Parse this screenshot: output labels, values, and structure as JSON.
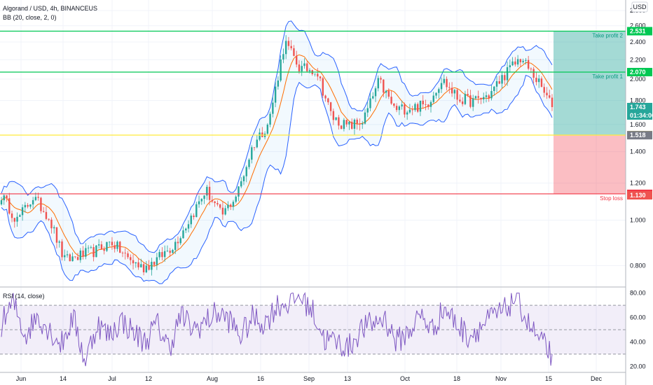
{
  "header": {
    "symbol_line": "Algorand / USD, 4h, BINANCEUS",
    "indicator_line": "BB (20, close, 2, 0)",
    "rsi_title": "RSI (14, close)",
    "currency": "USD"
  },
  "colors": {
    "up": "#26a69a",
    "down": "#ef5350",
    "bb": "#2962ff",
    "bb_mid": "#ff6d00",
    "bb_fill": "rgba(33,150,243,0.06)",
    "tp_line": "#00c853",
    "entry_line": "#ffeb3b",
    "sl_line": "#f23645",
    "tp_zone": "rgba(38,166,154,0.42)",
    "sl_zone": "rgba(242,54,69,0.32)",
    "rsi_line": "#7e57c2",
    "rsi_band": "rgba(126,87,194,0.10)"
  },
  "chart_data": [
    {
      "type": "candlestick",
      "symbol": "ALGOUSD",
      "interval": "4h",
      "y_scale": "log",
      "ylim": [
        0.72,
        2.95
      ],
      "y_ticks": [
        "2.800",
        "2.600",
        "2.400",
        "2.200",
        "2.000",
        "1.800",
        "1.600",
        "1.400",
        "1.200",
        "1.000",
        "0.800"
      ],
      "x_ticks": [
        "Jun",
        "14",
        "Jul",
        "12",
        "Aug",
        "16",
        "Sep",
        "13",
        "Oct",
        "18",
        "Nov",
        "15",
        "Dec"
      ],
      "price_path": [
        [
          "Jun",
          1.13
        ],
        [
          "7",
          1.0
        ],
        [
          "14",
          1.12
        ],
        [
          "21",
          1.02
        ],
        [
          "26",
          0.82
        ],
        [
          "Jul",
          0.84
        ],
        [
          "7",
          0.86
        ],
        [
          "12",
          0.9
        ],
        [
          "20",
          0.83
        ],
        [
          "26",
          0.79
        ],
        [
          "Aug",
          0.83
        ],
        [
          "6",
          0.89
        ],
        [
          "11",
          1.01
        ],
        [
          "16",
          1.16
        ],
        [
          "20",
          1.02
        ],
        [
          "27",
          1.14
        ],
        [
          "Sep",
          1.45
        ],
        [
          "7",
          1.62
        ],
        [
          "9",
          2.4
        ],
        [
          "11",
          2.1
        ],
        [
          "13",
          2.1
        ],
        [
          "18",
          1.66
        ],
        [
          "23",
          1.58
        ],
        [
          "27",
          1.63
        ],
        [
          "Oct",
          1.98
        ],
        [
          "6",
          1.72
        ],
        [
          "12",
          1.74
        ],
        [
          "18",
          1.76
        ],
        [
          "23",
          2.0
        ],
        [
          "28",
          1.82
        ],
        [
          "Nov",
          1.79
        ],
        [
          "6",
          1.85
        ],
        [
          "9",
          2.05
        ],
        [
          "11",
          2.22
        ],
        [
          "13",
          2.0
        ],
        [
          "15",
          1.743
        ]
      ],
      "position": {
        "take_profit_2": {
          "label": "Take profit 2",
          "price": 2.531,
          "price_text": "2.531"
        },
        "take_profit_1": {
          "label": "Take profit 1",
          "price": 2.07,
          "price_text": "2.070"
        },
        "entry": {
          "price": 1.519,
          "price_text": "1.519"
        },
        "stop_loss": {
          "label": "Stop loss",
          "price": 1.138,
          "price_text": "1.138"
        }
      },
      "badges": [
        {
          "price": 1.743,
          "text": "1.743",
          "sub": "01:34:06",
          "color": "#26a69a"
        },
        {
          "price": 1.518,
          "text": "1.518",
          "color": "#787b86"
        },
        {
          "price": 1.13,
          "text": "1.130",
          "color": "#ef5350"
        }
      ]
    },
    {
      "type": "line",
      "name": "RSI (14, close)",
      "ylim": [
        15,
        85
      ],
      "y_ticks": [
        "80.00",
        "60.00",
        "40.00",
        "20.00"
      ],
      "bands": {
        "upper": 70,
        "middle": 50,
        "lower": 30
      },
      "rsi_path": [
        [
          "Jun",
          55
        ],
        [
          "4",
          72
        ],
        [
          "7",
          45
        ],
        [
          "10",
          62
        ],
        [
          "14",
          50
        ],
        [
          "18",
          38
        ],
        [
          "22",
          60
        ],
        [
          "26",
          24
        ],
        [
          "Jul",
          55
        ],
        [
          "5",
          45
        ],
        [
          "9",
          58
        ],
        [
          "12",
          48
        ],
        [
          "16",
          40
        ],
        [
          "20",
          55
        ],
        [
          "24",
          35
        ],
        [
          "28",
          62
        ],
        [
          "Aug",
          50
        ],
        [
          "5",
          56
        ],
        [
          "9",
          64
        ],
        [
          "13",
          58
        ],
        [
          "17",
          45
        ],
        [
          "21",
          60
        ],
        [
          "25",
          55
        ],
        [
          "30",
          70
        ],
        [
          "Sep",
          72
        ],
        [
          "5",
          78
        ],
        [
          "9",
          65
        ],
        [
          "11",
          42
        ],
        [
          "14",
          40
        ],
        [
          "18",
          35
        ],
        [
          "22",
          50
        ],
        [
          "26",
          55
        ],
        [
          "Oct",
          60
        ],
        [
          "5",
          40
        ],
        [
          "9",
          48
        ],
        [
          "13",
          62
        ],
        [
          "17",
          50
        ],
        [
          "21",
          68
        ],
        [
          "25",
          55
        ],
        [
          "29",
          45
        ],
        [
          "Nov",
          52
        ],
        [
          "4",
          60
        ],
        [
          "8",
          65
        ],
        [
          "10",
          78
        ],
        [
          "12",
          55
        ],
        [
          "14",
          40
        ],
        [
          "15",
          30
        ]
      ]
    }
  ]
}
